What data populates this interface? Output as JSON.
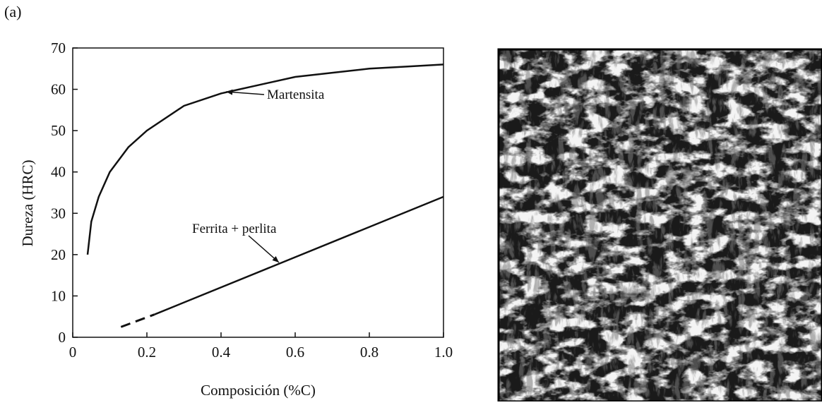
{
  "panel_label": "(a)",
  "chart_data": {
    "type": "line",
    "x_label": "Composición (%C)",
    "y_label": "Dureza (HRC)",
    "xlim": [
      0,
      1
    ],
    "ylim": [
      0,
      70
    ],
    "xticks": [
      0,
      0.2,
      0.4,
      0.6,
      0.8,
      {
        "value": 1,
        "label": "1.0"
      }
    ],
    "yticks": [
      0,
      10,
      20,
      30,
      40,
      50,
      60,
      70
    ],
    "series": [
      {
        "name": "Martensita",
        "color": "#111111",
        "x": [
          0.04,
          0.05,
          0.07,
          0.1,
          0.15,
          0.2,
          0.3,
          0.4,
          0.5,
          0.6,
          0.7,
          0.8,
          0.9,
          1.0
        ],
        "values": [
          20,
          28,
          34,
          40,
          46,
          50,
          56,
          59,
          61,
          63,
          64,
          65,
          65.5,
          66
        ]
      },
      {
        "name": "Ferrita + perlita",
        "color": "#111111",
        "x": [
          0.22,
          1.0
        ],
        "values": [
          5.5,
          34
        ]
      },
      {
        "color": "#111111",
        "style": "dashed",
        "x": [
          0.13,
          0.22
        ],
        "values": [
          2.5,
          5.5
        ]
      }
    ]
  }
}
